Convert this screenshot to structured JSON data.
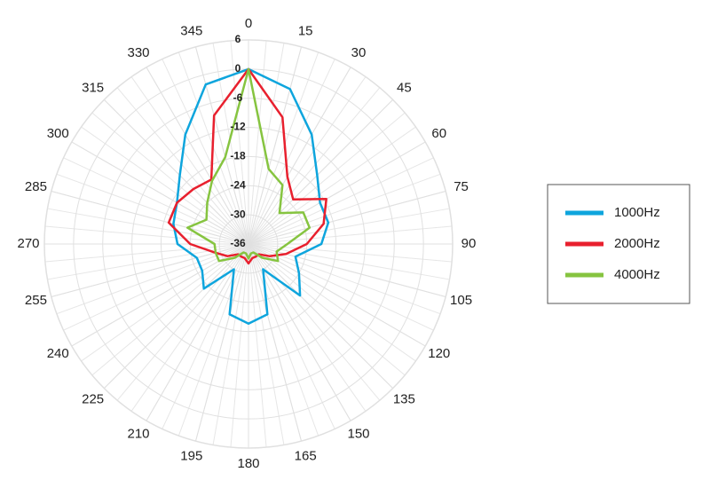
{
  "chart_data": {
    "type": "polar",
    "theta": [
      0,
      15,
      30,
      45,
      60,
      75,
      90,
      105,
      120,
      135,
      150,
      165,
      180,
      195,
      210,
      225,
      240,
      255,
      270,
      285,
      300,
      315,
      330,
      345
    ],
    "thetaticks": [
      0,
      15,
      30,
      45,
      60,
      75,
      90,
      105,
      120,
      135,
      150,
      165,
      180,
      195,
      210,
      225,
      240,
      255,
      270,
      285,
      300,
      315,
      330,
      345
    ],
    "rlim": [
      -36,
      6
    ],
    "rticks": [
      -36,
      -30,
      -24,
      -18,
      -12,
      -6,
      0,
      6
    ],
    "grid": true,
    "legend": "right",
    "series": [
      {
        "name": "1000Hz",
        "color": "#0ea5dd",
        "values": [
          0,
          -3,
          -10,
          -16,
          -19,
          -19,
          -21,
          -26,
          -24,
          -21,
          -30,
          -21,
          -19.6,
          -21,
          -30,
          -23,
          -25,
          -25,
          -21.4,
          -20,
          -19,
          -16,
          -10,
          -2
        ]
      },
      {
        "name": "2000Hz",
        "color": "#e8202e",
        "values": [
          0,
          -9,
          -20,
          -23,
          -17.5,
          -20,
          -24,
          -28,
          -31,
          -33,
          -33,
          -33,
          -32,
          -33,
          -33,
          -33,
          -31,
          -29,
          -24,
          -19,
          -19,
          -20,
          -20.7,
          -8.6
        ]
      },
      {
        "name": "4000Hz",
        "color": "#86c440",
        "values": [
          0,
          -20,
          -22,
          -27,
          -23,
          -23,
          -28,
          -30,
          -29,
          -32,
          -34,
          -34,
          -33,
          -34,
          -34,
          -32,
          -29,
          -29,
          -29,
          -23,
          -26,
          -24,
          -21,
          -17.5
        ]
      }
    ]
  }
}
